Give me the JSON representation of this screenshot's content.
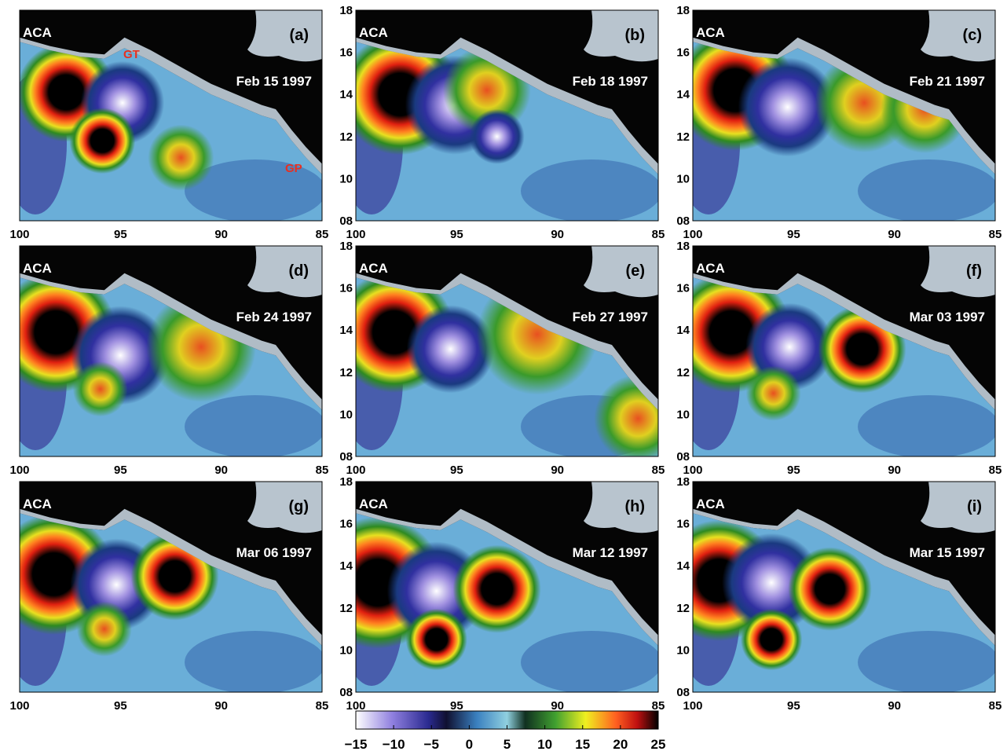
{
  "panels": [
    {
      "label": "(a)",
      "date": "Feb 15 1997",
      "site": "ACA",
      "annotations": [
        "GT",
        "GP"
      ]
    },
    {
      "label": "(b)",
      "date": "Feb 18 1997",
      "site": "ACA"
    },
    {
      "label": "(c)",
      "date": "Feb 21 1997",
      "site": "ACA"
    },
    {
      "label": "(d)",
      "date": "Feb 24 1997",
      "site": "ACA"
    },
    {
      "label": "(e)",
      "date": "Feb 27 1997",
      "site": "ACA"
    },
    {
      "label": "(f)",
      "date": "Mar 03 1997",
      "site": "ACA"
    },
    {
      "label": "(g)",
      "date": "Mar 06 1997",
      "site": "ACA"
    },
    {
      "label": "(h)",
      "date": "Mar 12 1997",
      "site": "ACA"
    },
    {
      "label": "(i)",
      "date": "Mar 15 1997",
      "site": "ACA"
    }
  ],
  "x_axis": {
    "lim": [
      100,
      85
    ],
    "ticks": [
      100,
      95,
      90,
      85
    ]
  },
  "y_axis": {
    "lim": [
      8,
      18
    ],
    "ticks": [
      {
        "value": 8,
        "label": "08"
      },
      10,
      12,
      14,
      16,
      18
    ]
  },
  "colorbar": {
    "lim": [
      -15,
      25
    ],
    "ticks": [
      {
        "value": -15,
        "label": "−15"
      },
      {
        "value": -10,
        "label": "−10"
      },
      {
        "value": -5,
        "label": "−5"
      },
      0,
      5,
      10,
      15,
      20,
      25
    ]
  }
}
